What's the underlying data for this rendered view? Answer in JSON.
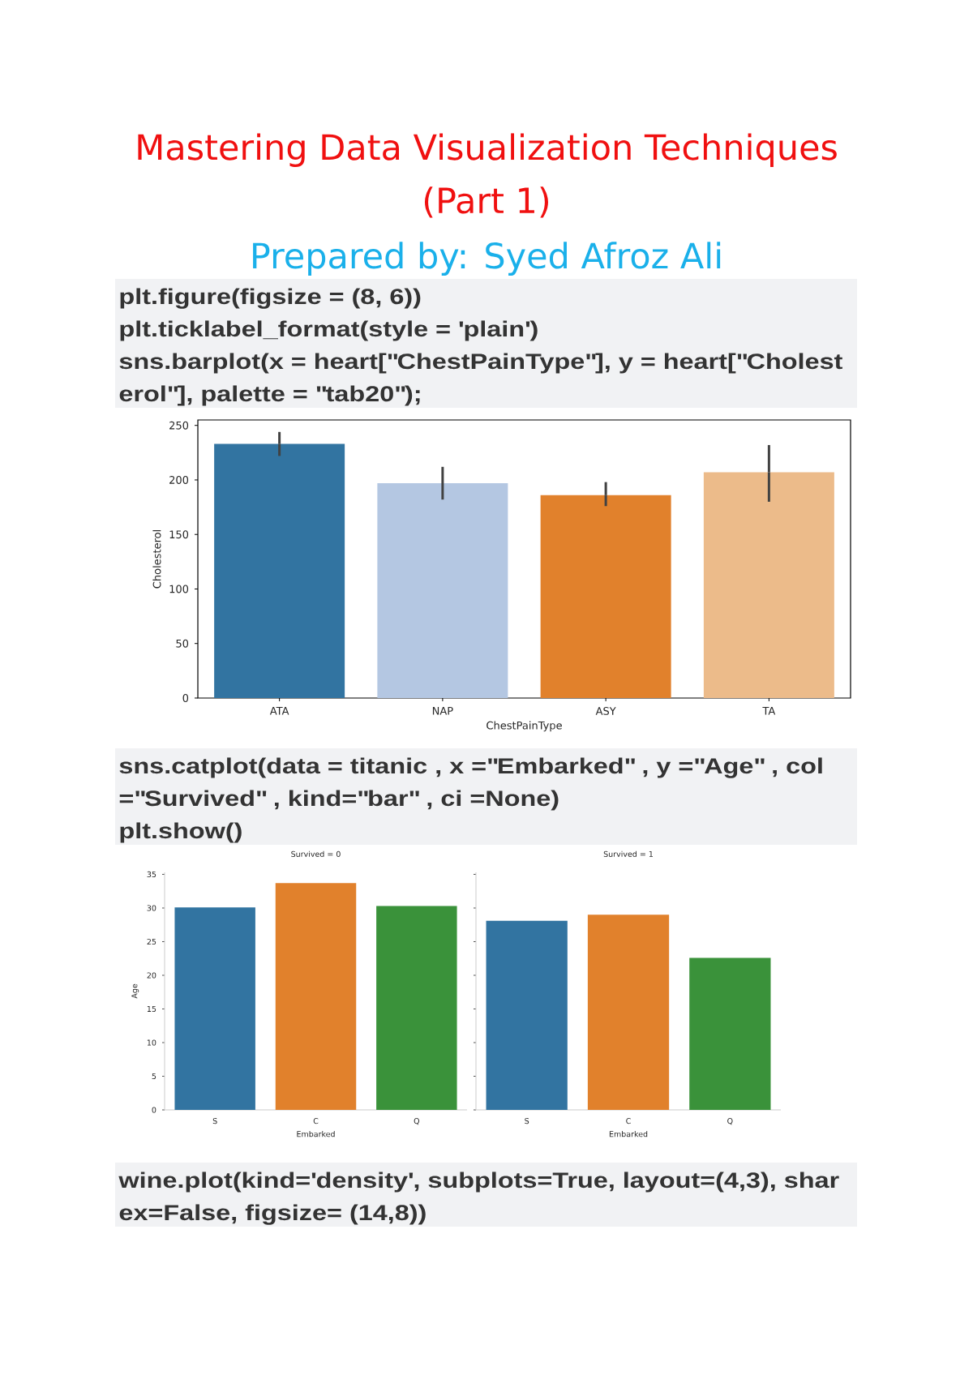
{
  "chart_data": [
    {
      "type": "bar",
      "title": "Mastering Data Visualization Techniques (Part 1)",
      "subtitle": "Prepared by: Syed Afroz Ali",
      "annotations": [
        "plt.figure(figsize = (8, 6))",
        "plt.ticklabel_format(style = 'plain')",
        "sns.barplot(x = heart[\"ChestPainType\"], y = heart[\"Cholest",
        "erol\"], palette = \"tab20\");"
      ],
      "categories": [
        "ATA",
        "NAP",
        "ASY",
        "TA"
      ],
      "values": [
        233,
        197,
        186,
        207
      ],
      "errors": [
        [
          222,
          244
        ],
        [
          182,
          212
        ],
        [
          176,
          198
        ],
        [
          180,
          232
        ]
      ],
      "colors": [
        "#3274a1",
        "#b4c7e2",
        "#e1812c",
        "#ecbb8a"
      ],
      "ylim": [
        0,
        255
      ],
      "yticks": [
        0,
        50,
        100,
        150,
        200,
        250
      ],
      "xlabel": "ChestPainType",
      "ylabel": "Cholesterol"
    },
    {
      "type": "bar",
      "title": "Survived = 0",
      "annotations": [
        "sns.catplot(data = titanic , x =\"Embarked\" , y =\"Age\" , col",
        "=\"Survived\" , kind=\"bar\" , ci =None)",
        "plt.show()"
      ],
      "categories": [
        "S",
        "C",
        "Q"
      ],
      "values": [
        30.1,
        33.7,
        30.3
      ],
      "colors": [
        "#3274a1",
        "#e1812c",
        "#3a923a"
      ],
      "ylim": [
        0,
        35.3
      ],
      "yticks": [
        0,
        5,
        10,
        15,
        20,
        25,
        30,
        35
      ],
      "xlabel": "Embarked",
      "ylabel": "Age"
    },
    {
      "type": "bar",
      "title": "Survived = 1",
      "annotations": [
        "wine.plot(kind='density', subplots=True, layout=(4,3), shar",
        "ex=False, figsize= (14,8))"
      ],
      "categories": [
        "S",
        "C",
        "Q"
      ],
      "values": [
        28.1,
        29.0,
        22.6
      ],
      "colors": [
        "#3274a1",
        "#e1812c",
        "#3a923a"
      ],
      "ylim": [
        0,
        35.3
      ],
      "yticks": [
        0,
        5,
        10,
        15,
        20,
        25,
        30,
        35
      ],
      "tick_labels": "x",
      "xlabel": "Embarked"
    }
  ]
}
